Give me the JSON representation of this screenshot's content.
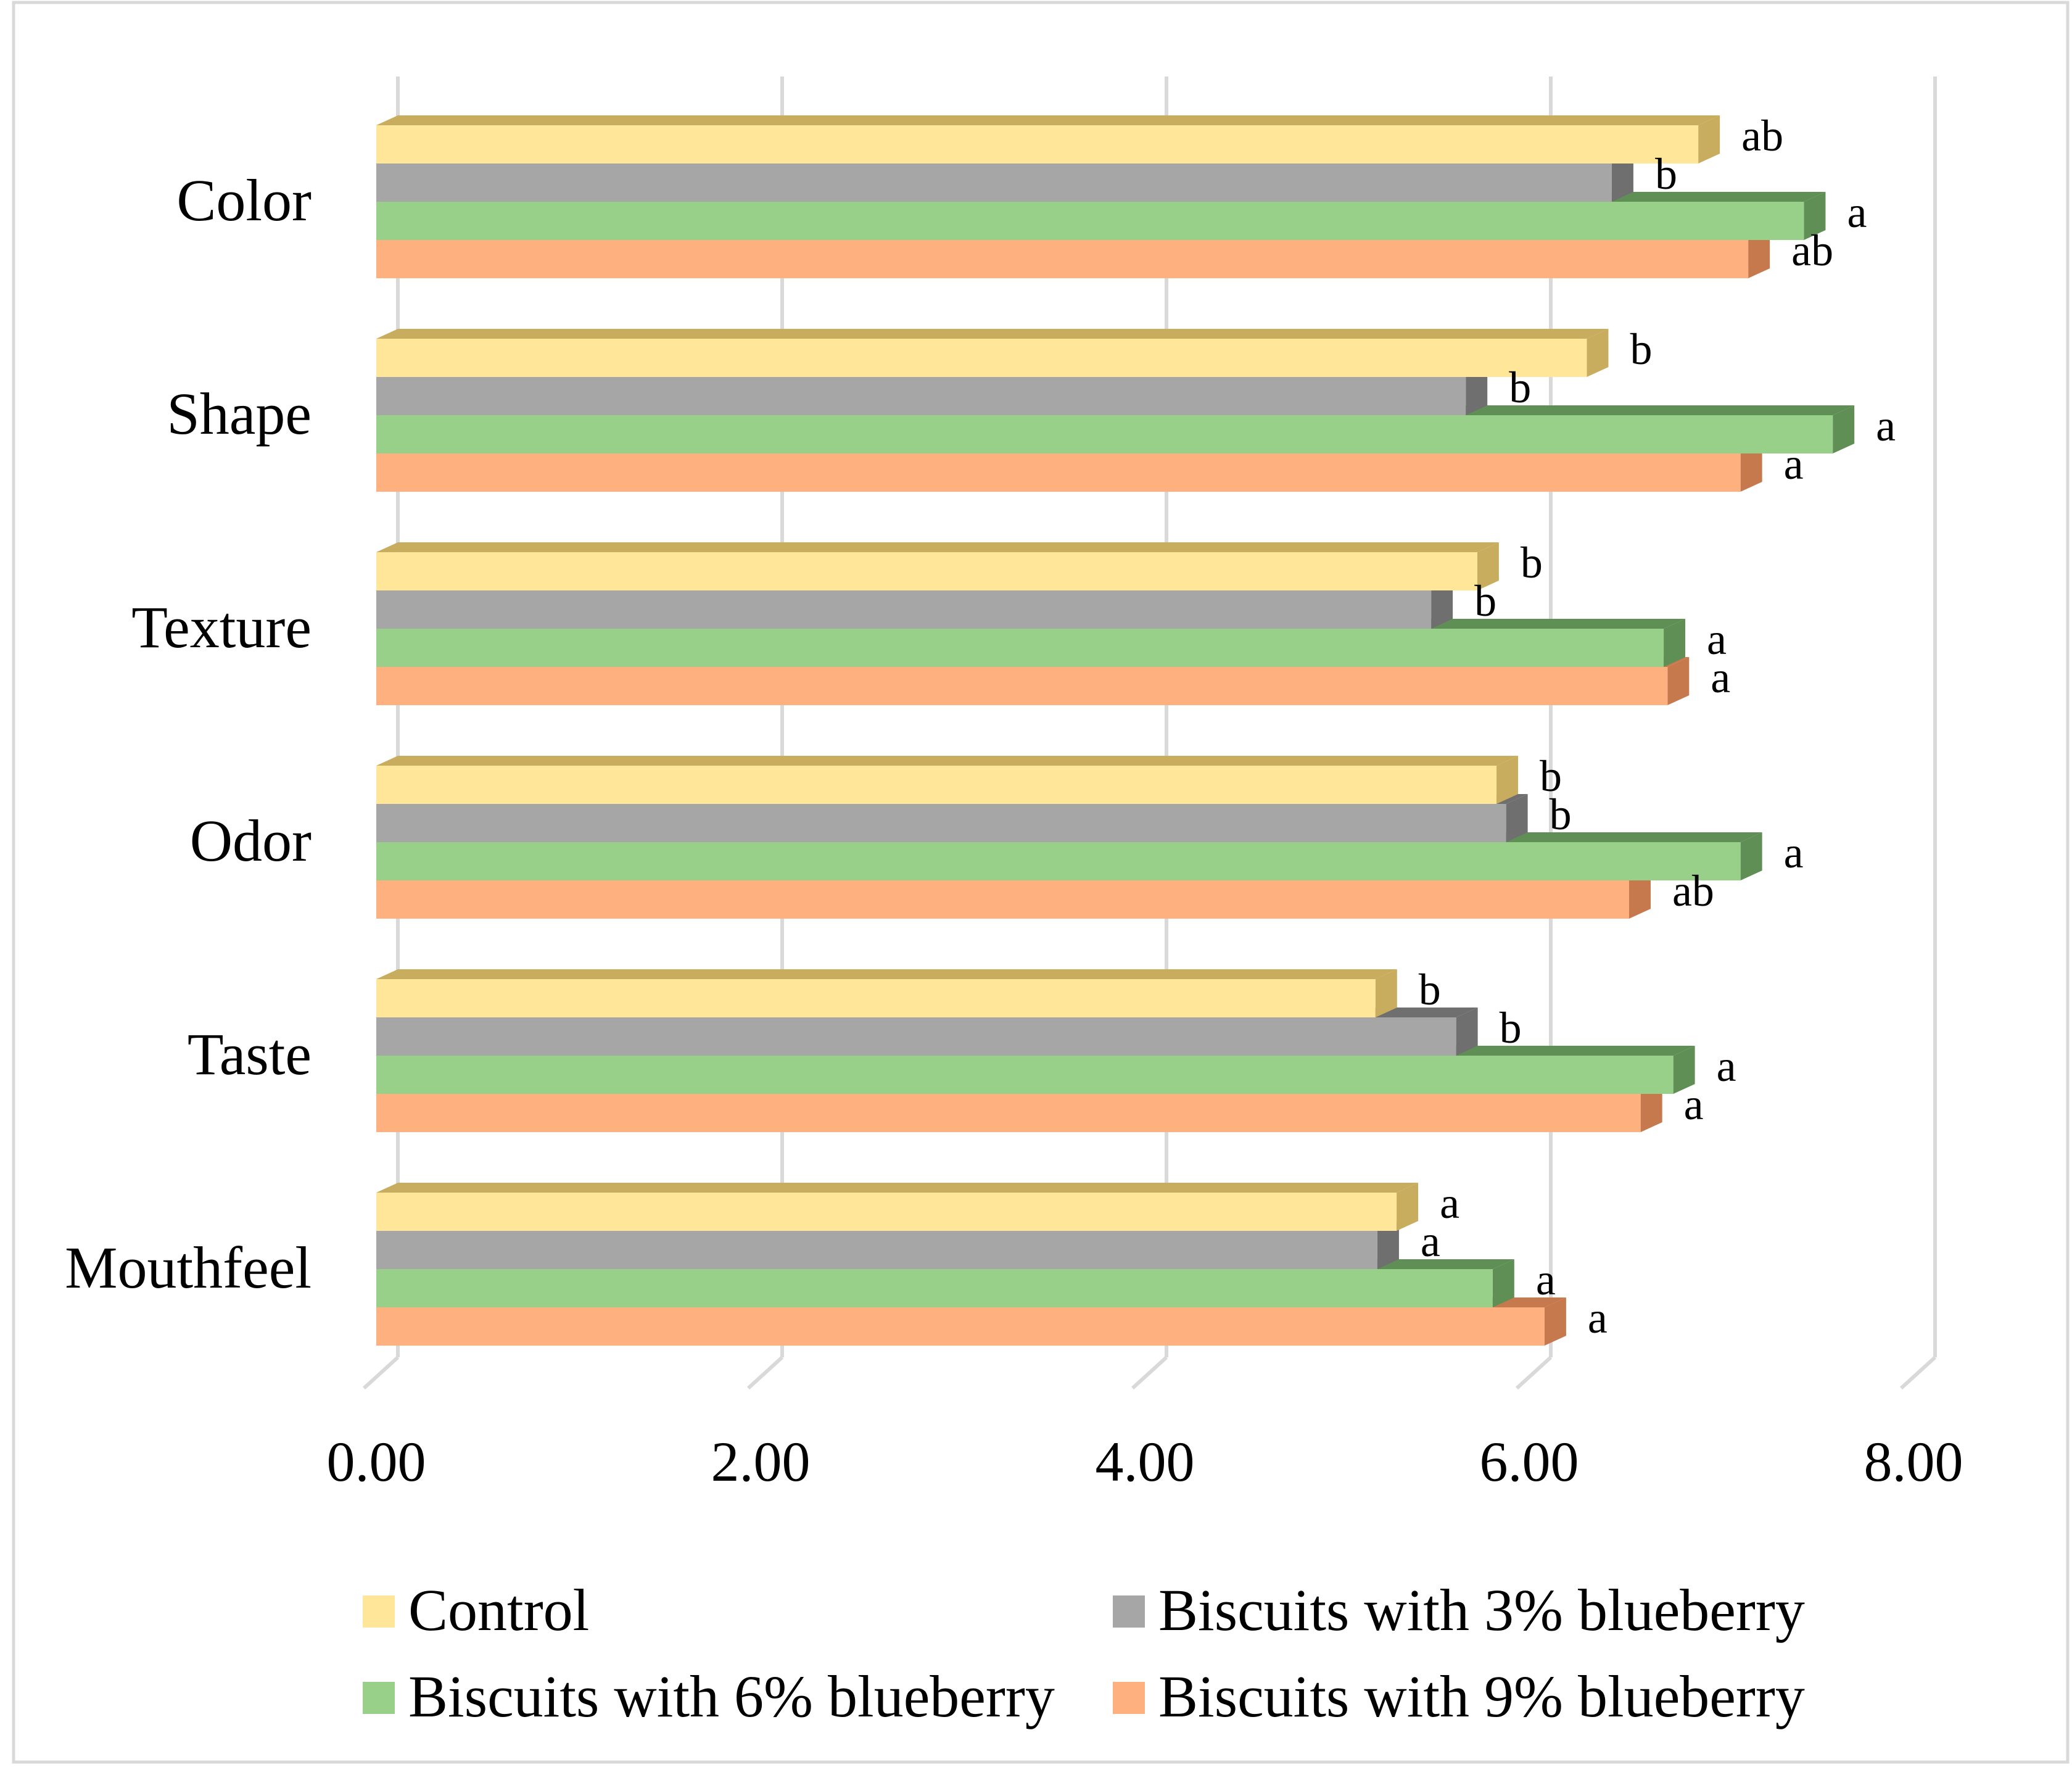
{
  "chart_data": {
    "type": "bar",
    "orientation": "horizontal",
    "style": "3d",
    "categories": [
      "Color",
      "Shape",
      "Texture",
      "Odor",
      "Taste",
      "Mouthfeel"
    ],
    "xlim": [
      0,
      8
    ],
    "x_ticks": [
      "0.00",
      "2.00",
      "4.00",
      "6.00",
      "8.00"
    ],
    "grid": true,
    "legend_position": "bottom",
    "series": [
      {
        "name": "Control",
        "color": "#ffe699",
        "side": "#c9ad5e",
        "values": [
          6.88,
          6.3,
          5.73,
          5.83,
          5.2,
          5.31
        ],
        "labels": [
          "ab",
          "b",
          "b",
          "b",
          "b",
          "a"
        ]
      },
      {
        "name": "Biscuits with 3% blueberry",
        "color": "#a6a6a6",
        "side": "#6f6f6f",
        "values": [
          6.43,
          5.67,
          5.49,
          5.88,
          5.62,
          5.21
        ],
        "labels": [
          "b",
          "b",
          "b",
          "b",
          "b",
          "a"
        ]
      },
      {
        "name": "Biscuits with 6% blueberry",
        "color": "#98d08a",
        "side": "#5f8f55",
        "values": [
          7.43,
          7.58,
          6.7,
          7.1,
          6.75,
          5.81
        ],
        "labels": [
          "a",
          "a",
          "a",
          "a",
          "a",
          "a"
        ]
      },
      {
        "name": "Biscuits with 9% blueberry",
        "color": "#ffb07f",
        "side": "#c7794e",
        "values": [
          7.14,
          7.1,
          6.72,
          6.52,
          6.58,
          6.08
        ],
        "labels": [
          "ab",
          "a",
          "a",
          "ab",
          "a",
          "a"
        ]
      }
    ]
  }
}
